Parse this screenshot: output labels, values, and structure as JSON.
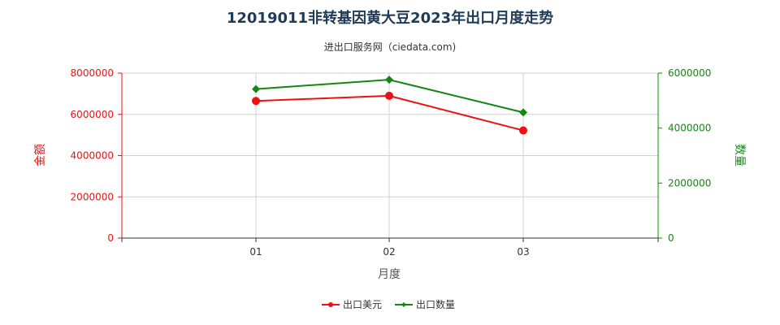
{
  "chart_data": {
    "type": "line",
    "title": "12019011非转基因黄大豆2023年出口月度走势",
    "subtitle": "进出口服务网（ciedata.com)",
    "xlabel": "月度",
    "ylabel_left": "金额",
    "ylabel_right": "数量",
    "categories": [
      "01",
      "02",
      "03"
    ],
    "ylim_left": [
      0,
      8000000
    ],
    "ylim_right": [
      0,
      6000000
    ],
    "yticks_left": [
      "0",
      "2000000",
      "4000000",
      "6000000",
      "8000000"
    ],
    "yticks_right": [
      "0",
      "2000000",
      "4000000",
      "6000000"
    ],
    "grid": true,
    "legend_position": "bottom",
    "series": [
      {
        "name": "出口美元",
        "axis": "left",
        "color": "#ee1111",
        "marker": "circle",
        "values": [
          6650000,
          6900000,
          5220000
        ]
      },
      {
        "name": "出口数量",
        "axis": "right",
        "color": "#118811",
        "marker": "diamond",
        "values": [
          5420000,
          5760000,
          4570000
        ]
      }
    ]
  }
}
